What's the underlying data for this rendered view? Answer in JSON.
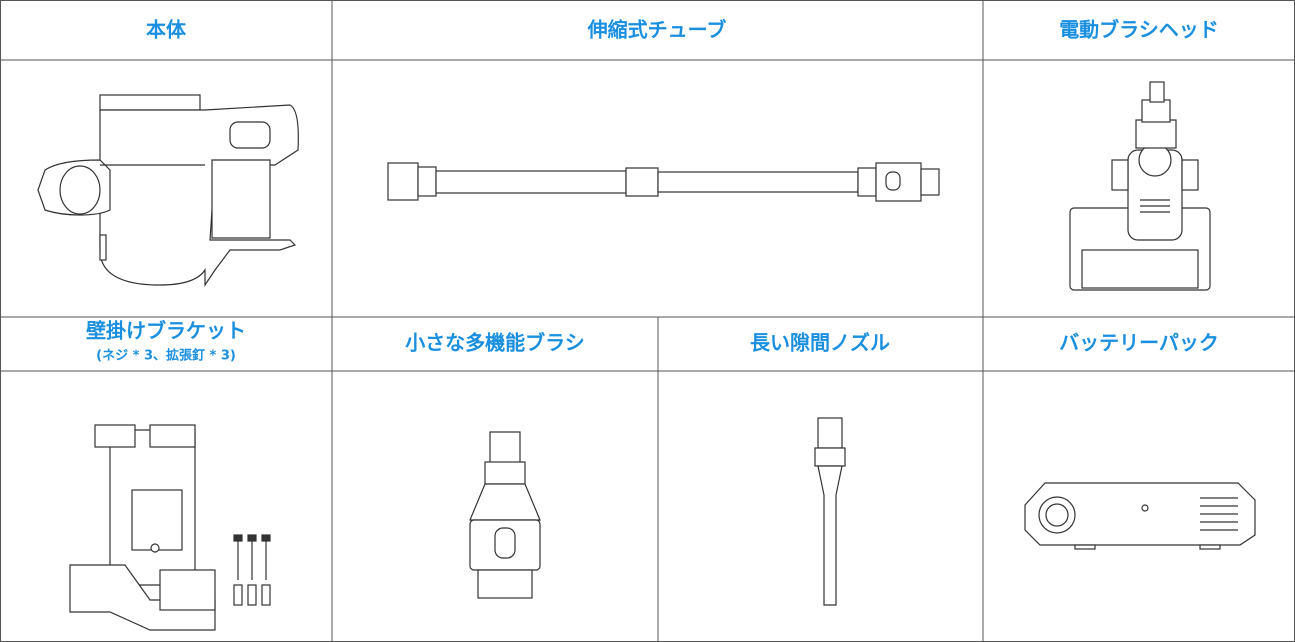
{
  "items": [
    {
      "label": "本体"
    },
    {
      "label": "伸縮式チューブ"
    },
    {
      "label": "電動ブラシヘッド"
    },
    {
      "label": "壁掛けブラケット",
      "note": "(ネジ * 3、拡張釘 * 3)"
    },
    {
      "label": "小さな多機能ブラシ"
    },
    {
      "label": "長い隙間ノズル"
    },
    {
      "label": "バッテリーパック"
    }
  ]
}
